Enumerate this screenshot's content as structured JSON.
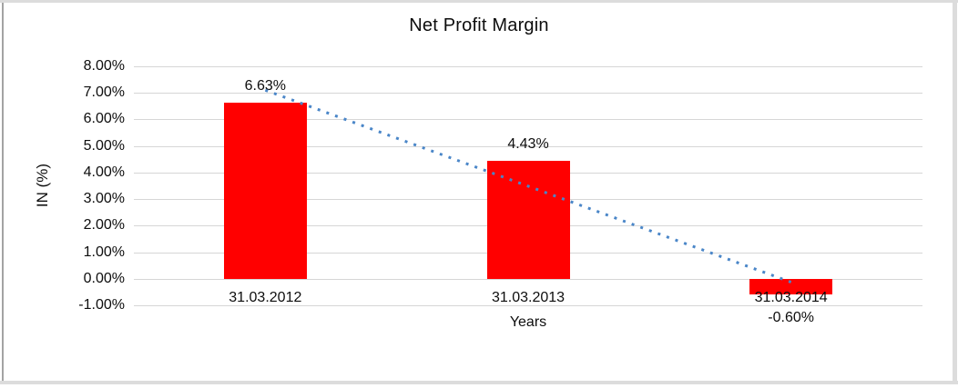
{
  "chart_data": {
    "type": "bar",
    "title": "Net Profit Margin",
    "xlabel": "Years",
    "ylabel": "IN (%)",
    "categories": [
      "31.03.2012",
      "31.03.2013",
      "31.03.2014"
    ],
    "series": [
      {
        "name": "Net Profit Margin",
        "values": [
          6.63,
          4.43,
          -0.6
        ]
      }
    ],
    "data_labels": [
      "6.63%",
      "4.43%",
      "-0.60%"
    ],
    "y_ticks": [
      {
        "label": "8.00%",
        "value": 8
      },
      {
        "label": "7.00%",
        "value": 7
      },
      {
        "label": "6.00%",
        "value": 6
      },
      {
        "label": "5.00%",
        "value": 5
      },
      {
        "label": "4.00%",
        "value": 4
      },
      {
        "label": "3.00%",
        "value": 3
      },
      {
        "label": "2.00%",
        "value": 2
      },
      {
        "label": "1.00%",
        "value": 1
      },
      {
        "label": "0.00%",
        "value": 0
      },
      {
        "label": "-1.00%",
        "value": -1
      }
    ],
    "ylim": [
      -1,
      8
    ],
    "grid": true,
    "legend": "none",
    "bar_color": "#ff0000",
    "gridline_color": "#d6d6d6",
    "trendline": {
      "type": "linear",
      "style": "dotted",
      "color": "#4a86c8"
    }
  }
}
